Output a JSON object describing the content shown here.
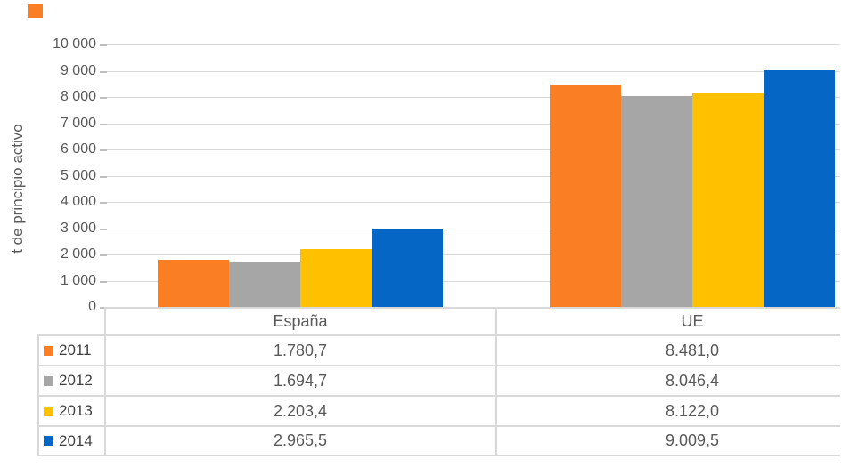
{
  "colors": {
    "series_2011": "#FA7E23",
    "series_2012": "#A6A6A6",
    "series_2013": "#FFC000",
    "series_2014": "#0566C5",
    "grid": "#D9D9D9",
    "tick": "#BFBFBF",
    "text": "#595959",
    "table_border": "#D9D9D9"
  },
  "stray_marker": {
    "color": "#FA7E23"
  },
  "chart_data": {
    "type": "bar",
    "title": "",
    "xlabel": "",
    "ylabel": "t de principio activo",
    "categories": [
      "España",
      "UE"
    ],
    "series": [
      {
        "name": "2011",
        "color": "#FA7E23",
        "values": [
          1780.7,
          8481.0
        ],
        "display": [
          "1.780,7",
          "8.481,0"
        ]
      },
      {
        "name": "2012",
        "color": "#A6A6A6",
        "values": [
          1694.7,
          8046.4
        ],
        "display": [
          "1.694,7",
          "8.046,4"
        ]
      },
      {
        "name": "2013",
        "color": "#FFC000",
        "values": [
          2203.4,
          8122.0
        ],
        "display": [
          "2.203,4",
          "8.122,0"
        ]
      },
      {
        "name": "2014",
        "color": "#0566C5",
        "values": [
          2965.5,
          9009.5
        ],
        "display": [
          "2.965,5",
          "9.009,5"
        ]
      }
    ],
    "ylim": [
      0,
      10000
    ],
    "ytick_step": 1000,
    "ytick_labels": [
      "0",
      "1 000",
      "2 000",
      "3 000",
      "4 000",
      "5 000",
      "6 000",
      "7 000",
      "8 000",
      "9 000",
      "10 000"
    ],
    "grid": true,
    "legend_position": "data-table-left",
    "data_table_shown": true
  }
}
